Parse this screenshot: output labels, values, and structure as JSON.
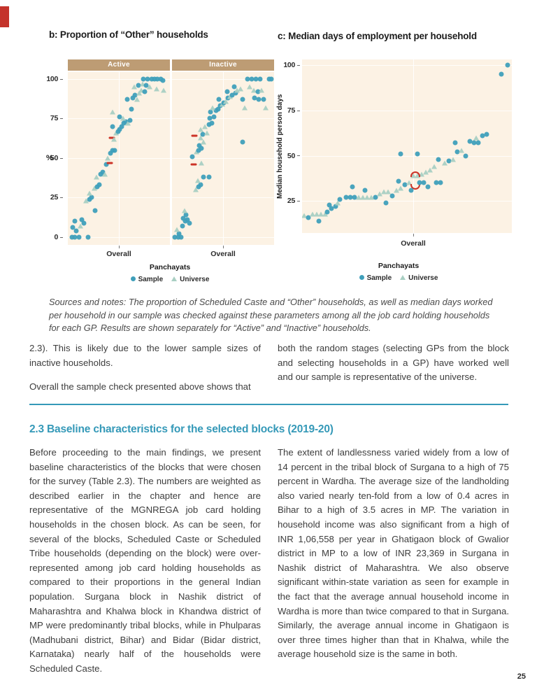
{
  "page": {
    "number": "25"
  },
  "figure": {
    "panel_b": {
      "title": "b: Proportion of “Other” households",
      "facet_active": "Active",
      "facet_inactive": "Inactive",
      "y_axis_label": "%",
      "x_tick_label": "Overall",
      "x_axis_title": "Panchayats",
      "legend_sample": "Sample",
      "legend_universe": "Universe"
    },
    "panel_c": {
      "title": "c: Median days of employment per household",
      "y_axis_label": "Median household person days",
      "x_tick_label": "Overall",
      "x_axis_title": "Panchayats",
      "legend_sample": "Sample",
      "legend_universe": "Universe"
    },
    "caption": "Sources and notes: The proportion of Scheduled Caste and “Other” households, as well as median days worked per household in our sample was checked against these parameters among all the job card holding households for each GP. Results are shown separately for “Active” and “Inactive” households."
  },
  "colors": {
    "accent_teal": "#3599b8",
    "sample_point": "#3f9fba",
    "universe_point": "#a9cfc3",
    "red_marker": "#cc3327",
    "facet_strip": "#bd9c74",
    "plot_background": "#fcf2e4"
  },
  "body": {
    "col1_p1": "2.3). This is likely due to the lower sample sizes of inactive households.",
    "col1_p2": "Overall the sample check presented above shows that",
    "col2_p1": "both the random stages (selecting GPs from the block and selecting households in a GP) have worked well and our sample is representative of the universe.",
    "section_heading": "2.3 Baseline characteristics for the selected blocks (2019-20)",
    "main_left": "Before proceeding to the main findings, we present baseline characteristics of the blocks that were chosen for the survey (Table 2.3). The numbers are weighted as described earlier in the chapter and hence are representative of the MGNREGA job card holding households in the chosen block. As can be seen, for several of the blocks, Scheduled Caste or Scheduled Tribe households (depending on the block) were over-represented among job card holding households as compared to their proportions in the general Indian population. Surgana block in Nashik district of Maharashtra and Khalwa block in Khandwa district of MP were predominantly tribal blocks, while in Phulparas (Madhubani district, Bihar) and Bidar (Bidar district, Karnataka) nearly half of the households were Scheduled Caste.",
    "main_right": "The extent of landlessness varied widely from a low of 14 percent in the tribal block of Surgana to a high of 75 percent in Wardha. The average size of the landholding also varied nearly ten-fold from a low of 0.4 acres in Bihar to a high of 3.5 acres in MP. The variation in household income was also significant from a high of INR 1,06,558 per year in Ghatigaon block of Gwalior district in MP to a low of INR 23,369 in Surgana in Nashik district of Maharashtra. We also observe significant within-state variation as seen for example in the fact that the average annual household income in Wardha is more than twice compared to that in Surgana. Similarly, the average annual income in Ghatigaon is over three times higher than that in Khalwa, while the average household size is the same in both."
  },
  "chart_data": [
    {
      "type": "scatter",
      "title": "b: Proportion of “Other” households — Active facet",
      "mount": "plot-active",
      "axis": "axis-b",
      "xlabel": "Panchayats",
      "ylabel": "%",
      "x_categories": [
        "Overall"
      ],
      "legend": [
        "Sample",
        "Universe"
      ],
      "ymin": -4.9,
      "ymax": 104.4,
      "yticks": [
        100,
        75,
        50,
        25,
        0
      ],
      "vgrid": [
        0.5
      ],
      "points": [
        [
          0.04,
          0,
          "s"
        ],
        [
          0.07,
          0,
          "s"
        ],
        [
          0.11,
          0,
          "s"
        ],
        [
          0.2,
          0,
          "s"
        ],
        [
          0.08,
          4,
          "s"
        ],
        [
          0.05,
          6,
          "s"
        ],
        [
          0.12,
          7,
          "u"
        ],
        [
          0.07,
          10,
          "s"
        ],
        [
          0.14,
          11,
          "s"
        ],
        [
          0.16,
          9,
          "s"
        ],
        [
          0.27,
          17,
          "s"
        ],
        [
          0.18,
          23,
          "u"
        ],
        [
          0.21,
          24,
          "s"
        ],
        [
          0.23,
          25,
          "s"
        ],
        [
          0.21,
          28,
          "u"
        ],
        [
          0.26,
          31,
          "u"
        ],
        [
          0.29,
          32,
          "s"
        ],
        [
          0.31,
          33,
          "s"
        ],
        [
          0.28,
          38,
          "u"
        ],
        [
          0.32,
          40,
          "s"
        ],
        [
          0.34,
          41,
          "s"
        ],
        [
          0.36,
          40,
          "u"
        ],
        [
          0.38,
          46,
          "s"
        ],
        [
          0.41,
          47,
          "rd"
        ],
        [
          0.39,
          50,
          "u"
        ],
        [
          0.42,
          53,
          "s"
        ],
        [
          0.44,
          55,
          "s"
        ],
        [
          0.46,
          55,
          "s"
        ],
        [
          0.43,
          63,
          "rd"
        ],
        [
          0.45,
          62,
          "u"
        ],
        [
          0.47,
          66,
          "u"
        ],
        [
          0.49,
          67,
          "s"
        ],
        [
          0.51,
          68,
          "s"
        ],
        [
          0.44,
          70,
          "s"
        ],
        [
          0.53,
          70,
          "s"
        ],
        [
          0.55,
          72,
          "s"
        ],
        [
          0.57,
          73,
          "s"
        ],
        [
          0.59,
          72,
          "u"
        ],
        [
          0.61,
          74,
          "s"
        ],
        [
          0.54,
          75,
          "u"
        ],
        [
          0.51,
          76,
          "s"
        ],
        [
          0.44,
          79,
          "u"
        ],
        [
          0.62,
          81,
          "s"
        ],
        [
          0.58,
          87,
          "s"
        ],
        [
          0.64,
          88,
          "s"
        ],
        [
          0.68,
          87,
          "u"
        ],
        [
          0.66,
          90,
          "s"
        ],
        [
          0.7,
          91,
          "u"
        ],
        [
          0.72,
          93,
          "u"
        ],
        [
          0.75,
          92,
          "s"
        ],
        [
          0.65,
          95,
          "u"
        ],
        [
          0.69,
          96,
          "s"
        ],
        [
          0.73,
          97,
          "u"
        ],
        [
          0.77,
          96,
          "s"
        ],
        [
          0.8,
          95,
          "u"
        ],
        [
          0.74,
          100,
          "s"
        ],
        [
          0.78,
          100,
          "s"
        ],
        [
          0.82,
          100,
          "s"
        ],
        [
          0.85,
          100,
          "s"
        ],
        [
          0.88,
          100,
          "s"
        ],
        [
          0.91,
          100,
          "s"
        ],
        [
          0.93,
          99,
          "s"
        ],
        [
          0.87,
          94,
          "u"
        ],
        [
          0.94,
          93,
          "u"
        ]
      ]
    },
    {
      "type": "scatter",
      "title": "b: Proportion of “Other” households — Inactive facet",
      "mount": "plot-inactive",
      "xlabel": "Panchayats",
      "ylabel": "%",
      "x_categories": [
        "Overall"
      ],
      "legend": [
        "Sample",
        "Universe"
      ],
      "ymin": -4.9,
      "ymax": 104.4,
      "yticks": [
        100,
        75,
        50,
        25,
        0
      ],
      "vgrid": [
        0.5
      ],
      "points": [
        [
          0.03,
          0,
          "s"
        ],
        [
          0.06,
          0,
          "s"
        ],
        [
          0.09,
          0,
          "s"
        ],
        [
          0.07,
          2,
          "s"
        ],
        [
          0.05,
          5,
          "u"
        ],
        [
          0.1,
          7,
          "s"
        ],
        [
          0.13,
          10,
          "s"
        ],
        [
          0.15,
          11,
          "s"
        ],
        [
          0.11,
          12,
          "s"
        ],
        [
          0.17,
          9,
          "s"
        ],
        [
          0.14,
          14,
          "s"
        ],
        [
          0.12,
          17,
          "u"
        ],
        [
          0.23,
          30,
          "u"
        ],
        [
          0.26,
          32,
          "s"
        ],
        [
          0.28,
          33,
          "s"
        ],
        [
          0.25,
          36,
          "u"
        ],
        [
          0.31,
          38,
          "s"
        ],
        [
          0.36,
          38,
          "s"
        ],
        [
          0.29,
          47,
          "u"
        ],
        [
          0.21,
          46,
          "rd"
        ],
        [
          0.2,
          51,
          "s"
        ],
        [
          0.24,
          54,
          "u"
        ],
        [
          0.26,
          55,
          "s"
        ],
        [
          0.29,
          56,
          "s"
        ],
        [
          0.27,
          58,
          "s"
        ],
        [
          0.31,
          60,
          "u"
        ],
        [
          0.22,
          64,
          "rd"
        ],
        [
          0.28,
          63,
          "u"
        ],
        [
          0.3,
          65,
          "s"
        ],
        [
          0.34,
          66,
          "u"
        ],
        [
          0.28,
          68,
          "u"
        ],
        [
          0.32,
          70,
          "u"
        ],
        [
          0.36,
          71,
          "s"
        ],
        [
          0.39,
          72,
          "s"
        ],
        [
          0.37,
          75,
          "s"
        ],
        [
          0.41,
          76,
          "s"
        ],
        [
          0.38,
          79,
          "s"
        ],
        [
          0.43,
          80,
          "s"
        ],
        [
          0.45,
          81,
          "s"
        ],
        [
          0.4,
          82,
          "u"
        ],
        [
          0.47,
          83,
          "s"
        ],
        [
          0.49,
          84,
          "u"
        ],
        [
          0.51,
          85,
          "s"
        ],
        [
          0.53,
          86,
          "u"
        ],
        [
          0.46,
          87,
          "s"
        ],
        [
          0.55,
          88,
          "s"
        ],
        [
          0.57,
          89,
          "u"
        ],
        [
          0.59,
          90,
          "s"
        ],
        [
          0.62,
          91,
          "s"
        ],
        [
          0.54,
          92,
          "s"
        ],
        [
          0.64,
          93,
          "u"
        ],
        [
          0.67,
          94,
          "u"
        ],
        [
          0.61,
          95,
          "s"
        ],
        [
          0.69,
          87,
          "s"
        ],
        [
          0.71,
          82,
          "u"
        ],
        [
          0.69,
          60,
          "s"
        ],
        [
          0.74,
          100,
          "s"
        ],
        [
          0.78,
          100,
          "s"
        ],
        [
          0.82,
          100,
          "s"
        ],
        [
          0.86,
          100,
          "s"
        ],
        [
          0.76,
          95,
          "u"
        ],
        [
          0.8,
          93,
          "u"
        ],
        [
          0.84,
          92,
          "s"
        ],
        [
          0.88,
          93,
          "u"
        ],
        [
          0.81,
          88,
          "s"
        ],
        [
          0.85,
          87,
          "s"
        ],
        [
          0.9,
          87,
          "s"
        ],
        [
          0.92,
          82,
          "u"
        ],
        [
          0.95,
          100,
          "s"
        ],
        [
          0.97,
          100,
          "s"
        ]
      ]
    },
    {
      "type": "scatter",
      "title": "c: Median days of employment per household",
      "mount": "plot-c",
      "axis": "axis-c",
      "xlabel": "Panchayats",
      "ylabel": "Median household person days",
      "x_categories": [
        "Overall"
      ],
      "legend": [
        "Sample",
        "Universe"
      ],
      "ymin": 7.4,
      "ymax": 103.1,
      "yticks": [
        100,
        75,
        50,
        25
      ],
      "vgrid": [
        0.53
      ],
      "points": [
        [
          0.01,
          17,
          "u"
        ],
        [
          0.03,
          16,
          "s"
        ],
        [
          0.05,
          18,
          "u"
        ],
        [
          0.07,
          18,
          "u"
        ],
        [
          0.09,
          18,
          "u"
        ],
        [
          0.11,
          18,
          "u"
        ],
        [
          0.12,
          19,
          "s"
        ],
        [
          0.08,
          14,
          "s"
        ],
        [
          0.14,
          21,
          "s"
        ],
        [
          0.13,
          23,
          "s"
        ],
        [
          0.16,
          22,
          "s"
        ],
        [
          0.18,
          26,
          "s"
        ],
        [
          0.17,
          24,
          "u"
        ],
        [
          0.21,
          27,
          "s"
        ],
        [
          0.23,
          27,
          "s"
        ],
        [
          0.25,
          27,
          "s"
        ],
        [
          0.27,
          27,
          "u"
        ],
        [
          0.29,
          27,
          "u"
        ],
        [
          0.31,
          27,
          "u"
        ],
        [
          0.33,
          27,
          "u"
        ],
        [
          0.35,
          27,
          "s"
        ],
        [
          0.3,
          31,
          "s"
        ],
        [
          0.37,
          29,
          "u"
        ],
        [
          0.39,
          30,
          "u"
        ],
        [
          0.41,
          30,
          "u"
        ],
        [
          0.43,
          28,
          "s"
        ],
        [
          0.4,
          24,
          "s"
        ],
        [
          0.45,
          31,
          "u"
        ],
        [
          0.47,
          32,
          "u"
        ],
        [
          0.24,
          33,
          "s"
        ],
        [
          0.46,
          36,
          "s"
        ],
        [
          0.49,
          34,
          "s"
        ],
        [
          0.51,
          35,
          "u"
        ],
        [
          0.53,
          39,
          "u"
        ],
        [
          0.55,
          39,
          "u"
        ],
        [
          0.57,
          40,
          "u"
        ],
        [
          0.59,
          41,
          "u"
        ],
        [
          0.61,
          42,
          "u"
        ],
        [
          0.63,
          44,
          "u"
        ],
        [
          0.47,
          51,
          "s"
        ],
        [
          0.55,
          51,
          "s"
        ],
        [
          0.54,
          40,
          "ra"
        ],
        [
          0.54,
          33,
          "rv"
        ],
        [
          0.56,
          35,
          "s"
        ],
        [
          0.58,
          35,
          "s"
        ],
        [
          0.52,
          31,
          "s"
        ],
        [
          0.6,
          33,
          "s"
        ],
        [
          0.64,
          35,
          "s"
        ],
        [
          0.66,
          35,
          "s"
        ],
        [
          0.65,
          48,
          "s"
        ],
        [
          0.68,
          46,
          "u"
        ],
        [
          0.7,
          47,
          "s"
        ],
        [
          0.72,
          48,
          "u"
        ],
        [
          0.74,
          52,
          "s"
        ],
        [
          0.76,
          53,
          "u"
        ],
        [
          0.78,
          50,
          "s"
        ],
        [
          0.73,
          57,
          "s"
        ],
        [
          0.8,
          58,
          "s"
        ],
        [
          0.82,
          57,
          "s"
        ],
        [
          0.84,
          57,
          "s"
        ],
        [
          0.83,
          60,
          "u"
        ],
        [
          0.86,
          61,
          "s"
        ],
        [
          0.88,
          62,
          "s"
        ],
        [
          0.95,
          95,
          "s"
        ],
        [
          0.98,
          100,
          "s"
        ]
      ]
    }
  ]
}
